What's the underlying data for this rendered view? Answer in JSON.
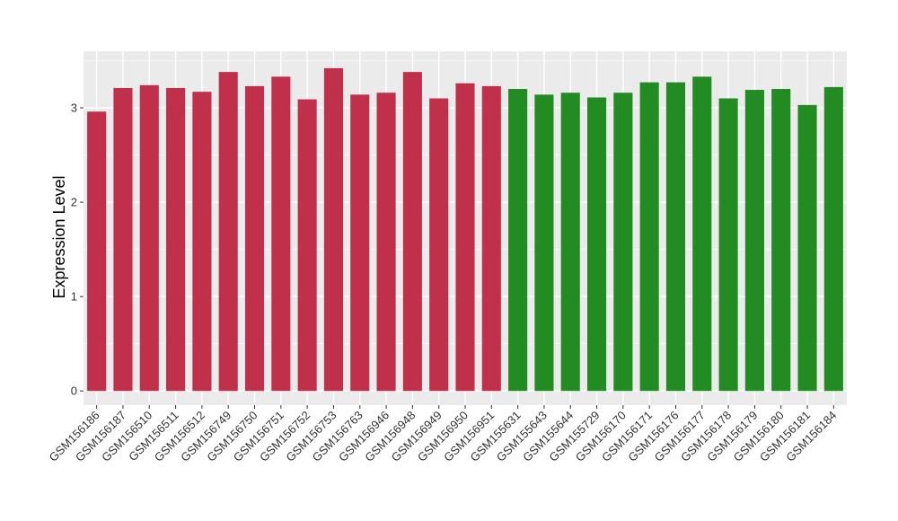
{
  "chart_data": {
    "type": "bar",
    "title": "",
    "xlabel": "",
    "ylabel": "Expression Level",
    "ylim": [
      -0.15,
      3.6
    ],
    "yticks": [
      0,
      1,
      2,
      3
    ],
    "grid": true,
    "legend": "none",
    "colors": {
      "panel_background": "#ebebeb",
      "gridline": "#ffffff",
      "group1": "#c0304a",
      "group2": "#228b22"
    },
    "categories": [
      "GSM156186",
      "GSM156187",
      "GSM156510",
      "GSM156511",
      "GSM156512",
      "GSM156749",
      "GSM156750",
      "GSM156751",
      "GSM156752",
      "GSM156753",
      "GSM156763",
      "GSM156946",
      "GSM156948",
      "GSM156949",
      "GSM156950",
      "GSM156951",
      "GSM155631",
      "GSM155643",
      "GSM155644",
      "GSM155729",
      "GSM156170",
      "GSM156171",
      "GSM156176",
      "GSM156177",
      "GSM156178",
      "GSM156179",
      "GSM156180",
      "GSM156181",
      "GSM156184"
    ],
    "values": [
      2.96,
      3.21,
      3.24,
      3.21,
      3.17,
      3.38,
      3.23,
      3.33,
      3.09,
      3.42,
      3.14,
      3.16,
      3.38,
      3.1,
      3.26,
      3.23,
      3.2,
      3.14,
      3.16,
      3.11,
      3.16,
      3.27,
      3.27,
      3.33,
      3.1,
      3.19,
      3.2,
      3.03,
      3.22
    ],
    "bar_groups": [
      0,
      0,
      0,
      0,
      0,
      0,
      0,
      0,
      0,
      0,
      0,
      0,
      0,
      0,
      0,
      0,
      1,
      1,
      1,
      1,
      1,
      1,
      1,
      1,
      1,
      1,
      1,
      1,
      1
    ]
  }
}
